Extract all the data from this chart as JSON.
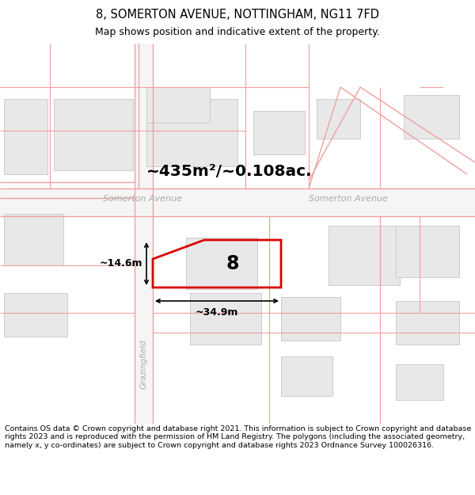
{
  "title_line1": "8, SOMERTON AVENUE, NOTTINGHAM, NG11 7FD",
  "title_line2": "Map shows position and indicative extent of the property.",
  "area_label": "~435m²/~0.108ac.",
  "width_label": "~34.9m",
  "height_label": "~14.6m",
  "property_number": "8",
  "street_label_left": "Somerton Avenue",
  "street_label_right": "Somerton Avenue",
  "road_label_vert": "Grazingfield",
  "footer_text": "Contains OS data © Crown copyright and database right 2021. This information is subject to Crown copyright and database rights 2023 and is reproduced with the permission of HM Land Registry. The polygons (including the associated geometry, namely x, y co-ordinates) are subject to Crown copyright and database rights 2023 Ordnance Survey 100026316.",
  "bg_color": "#ffffff",
  "map_bg": "#ffffff",
  "plot_outline_color": "#dd0000",
  "road_line_color": "#f0a0a0",
  "road_fill_color": "#f8f8f8",
  "building_color": "#e8e8e8",
  "building_edge_color": "#cccccc",
  "lot_fill_color": "#ffffff",
  "lot_edge_color": "#cccccc"
}
